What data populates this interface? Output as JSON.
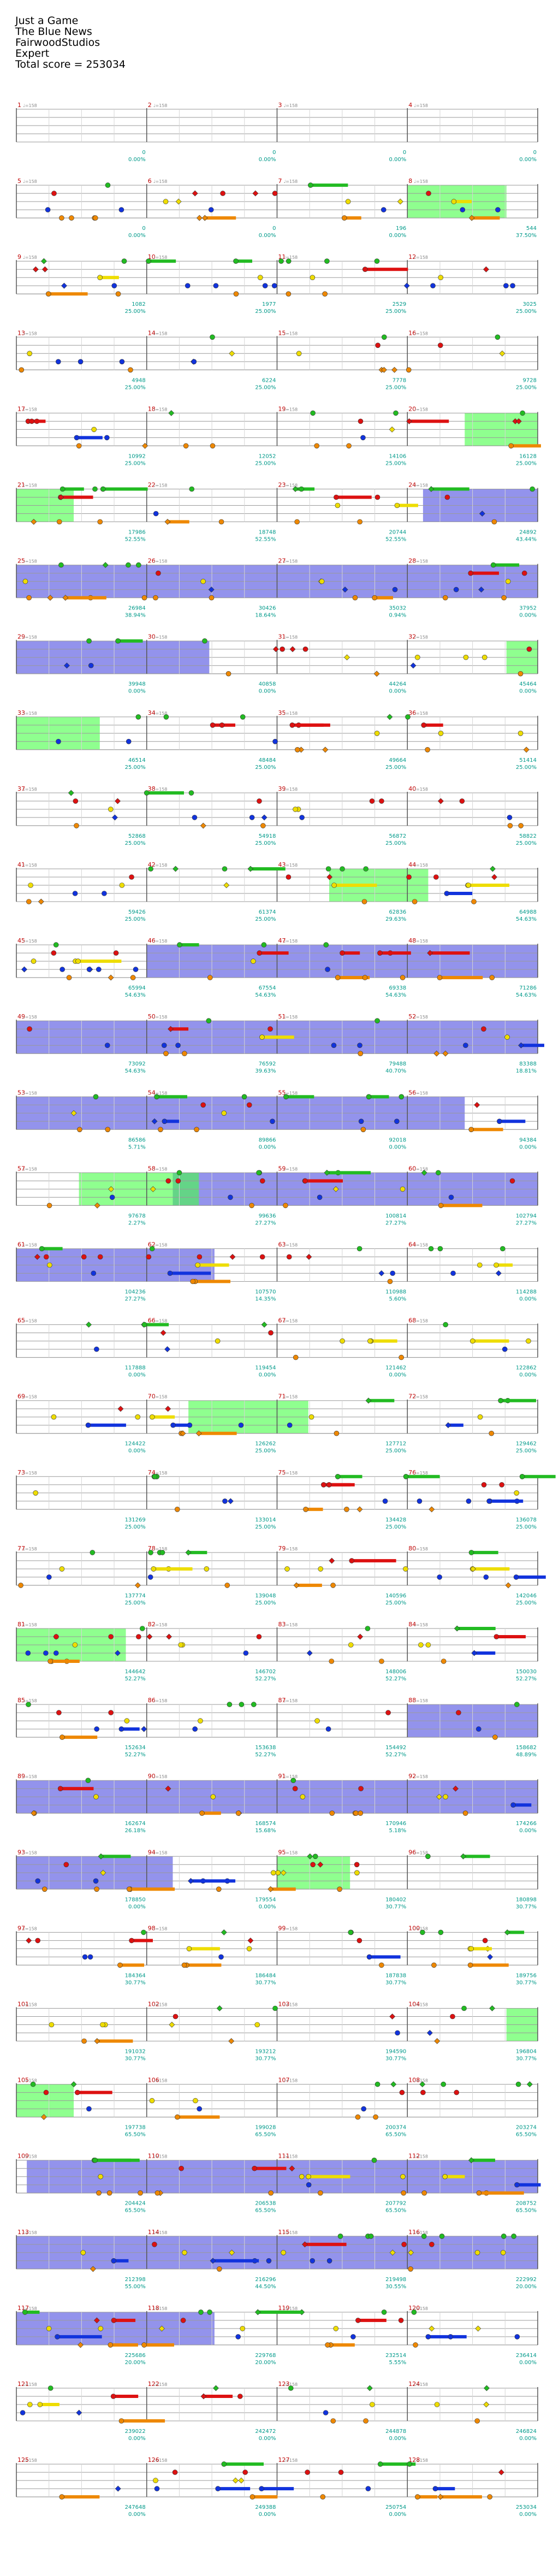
{
  "header": {
    "song_title": "Just a Game",
    "artist": "The Blue News",
    "charter": "FairwoodStudios",
    "difficulty": "Expert",
    "total_score": "Total score = 253034"
  },
  "colors": {
    "green_note": "#22bb22",
    "red_note": "#dd1111",
    "yellow_note": "#eedd00",
    "blue_note": "#1133dd",
    "orange_note": "#ee8800",
    "star_power": "#3b3bdd",
    "solo_section": "#44ff44",
    "open_note": "#aa22aa",
    "score_text": "#009a8a",
    "measure_text": "#c00000"
  },
  "rows": [
    {
      "measures": [
        "1",
        "2",
        "3",
        "4"
      ],
      "scores": [
        "0",
        "0",
        "0",
        "0"
      ],
      "multipliers": [
        "0.00%",
        "0.00%",
        "0.00%",
        "0.00%"
      ],
      "tempos": [
        "♩=158",
        "♩=158",
        "♩=158",
        "♩=158"
      ]
    },
    {
      "measures": [
        "5",
        "6",
        "7",
        "8"
      ],
      "scores": [
        "0",
        "0",
        "196",
        "544"
      ],
      "multipliers": [
        "0.00%",
        "0.00%",
        "0.00%",
        "37.50%"
      ],
      "tempos": [
        "♩=158",
        "♩=158",
        "♩=158",
        "♩=158"
      ]
    },
    {
      "measures": [
        "9",
        "10",
        "11",
        "12"
      ],
      "scores": [
        "1082",
        "1977",
        "2529",
        "3025"
      ],
      "multipliers": [
        "25.00%",
        "25.00%",
        "25.00%",
        "25.00%"
      ],
      "tempos": [
        "♩=158",
        "♩=158",
        "♩=158",
        "♩=158"
      ]
    },
    {
      "measures": [
        "13",
        "14",
        "15",
        "16"
      ],
      "scores": [
        "4948",
        "6224",
        "7778",
        "9728"
      ],
      "multipliers": [
        "25.00%",
        "25.00%",
        "25.00%",
        "25.00%"
      ],
      "tempos": [
        "♩=158",
        "♩=158",
        "♩=158",
        "♩=158"
      ]
    },
    {
      "measures": [
        "17",
        "18",
        "19",
        "20"
      ],
      "scores": [
        "10992",
        "12052",
        "14106",
        "16128"
      ],
      "multipliers": [
        "25.00%",
        "25.00%",
        "25.00%",
        "25.00%"
      ],
      "tempos": [
        "♩=158",
        "♩=158",
        "♩=158",
        "♩=158"
      ]
    },
    {
      "measures": [
        "21",
        "22",
        "23",
        "24"
      ],
      "scores": [
        "17986",
        "18748",
        "20744",
        "24892"
      ],
      "multipliers": [
        "52.55%",
        "52.55%",
        "52.55%",
        "43.44%"
      ],
      "tempos": [
        "♩=158",
        "♩=158",
        "♩=158",
        "♩=158"
      ]
    },
    {
      "measures": [
        "25",
        "26",
        "27",
        "28"
      ],
      "scores": [
        "26984",
        "30426",
        "35032",
        "37952"
      ],
      "multipliers": [
        "38.94%",
        "18.64%",
        "0.94%",
        "0.00%"
      ],
      "tempos": [
        "♩=158",
        "♩=158",
        "♩=158",
        "♩=158"
      ]
    },
    {
      "measures": [
        "29",
        "30",
        "31",
        "32"
      ],
      "scores": [
        "39948",
        "40858",
        "44264",
        "45464"
      ],
      "multipliers": [
        "0.00%",
        "0.00%",
        "0.00%",
        "0.00%"
      ],
      "tempos": [
        "♩=158",
        "♩=158",
        "♩=158",
        "♩=158"
      ]
    },
    {
      "measures": [
        "33",
        "34",
        "35",
        "36"
      ],
      "scores": [
        "46514",
        "48484",
        "49664",
        "51414"
      ],
      "multipliers": [
        "25.00%",
        "25.00%",
        "25.00%",
        "25.00%"
      ],
      "tempos": [
        "♩=158",
        "♩=158",
        "♩=158",
        "♩=158"
      ]
    },
    {
      "measures": [
        "37",
        "38",
        "39",
        "40"
      ],
      "scores": [
        "52868",
        "54918",
        "56872",
        "58822"
      ],
      "multipliers": [
        "25.00%",
        "25.00%",
        "25.00%",
        "25.00%"
      ],
      "tempos": [
        "♩=158",
        "♩=158",
        "♩=158",
        "♩=158"
      ]
    },
    {
      "measures": [
        "41",
        "42",
        "43",
        "44"
      ],
      "scores": [
        "59426",
        "61374",
        "62836",
        "64988"
      ],
      "multipliers": [
        "25.00%",
        "25.00%",
        "29.63%",
        "54.63%"
      ],
      "tempos": [
        "♩=158",
        "♩=158",
        "♩=158",
        "♩=158"
      ]
    },
    {
      "measures": [
        "45",
        "46",
        "47",
        "48"
      ],
      "scores": [
        "65994",
        "67554",
        "69338",
        "71286"
      ],
      "multipliers": [
        "54.63%",
        "54.63%",
        "54.63%",
        "54.63%"
      ],
      "tempos": [
        "♩=158",
        "♩=158",
        "♩=158",
        "♩=158"
      ]
    },
    {
      "measures": [
        "49",
        "50",
        "51",
        "52"
      ],
      "scores": [
        "73092",
        "76592",
        "79488",
        "83388"
      ],
      "multipliers": [
        "54.63%",
        "39.63%",
        "40.70%",
        "18.81%"
      ],
      "tempos": [
        "♩=158",
        "♩=158",
        "♩=158",
        "♩=158"
      ]
    },
    {
      "measures": [
        "53",
        "54",
        "55",
        "56"
      ],
      "scores": [
        "86586",
        "89866",
        "92018",
        "94384"
      ],
      "multipliers": [
        "5.71%",
        "0.00%",
        "0.00%",
        "0.00%"
      ],
      "tempos": [
        "♩=158",
        "♩=158",
        "♩=158",
        "♩=158"
      ]
    },
    {
      "measures": [
        "57",
        "58",
        "59",
        "60"
      ],
      "scores": [
        "97678",
        "99636",
        "100814",
        "102794"
      ],
      "multipliers": [
        "2.27%",
        "27.27%",
        "27.27%",
        "27.27%"
      ],
      "tempos": [
        "♩=158",
        "♩=158",
        "♩=158",
        "♩=158"
      ]
    },
    {
      "measures": [
        "61",
        "62",
        "63",
        "64"
      ],
      "scores": [
        "104236",
        "107570",
        "110988",
        "114288"
      ],
      "multipliers": [
        "27.27%",
        "14.35%",
        "5.60%",
        "0.00%"
      ],
      "tempos": [
        "♩=158",
        "♩=158",
        "♩=158",
        "♩=158"
      ]
    },
    {
      "measures": [
        "65",
        "66",
        "67",
        "68"
      ],
      "scores": [
        "117888",
        "119454",
        "121462",
        "122862"
      ],
      "multipliers": [
        "0.00%",
        "0.00%",
        "0.00%",
        "0.00%"
      ],
      "tempos": [
        "♩=158",
        "♩=158",
        "♩=158",
        "♩=158"
      ]
    },
    {
      "measures": [
        "69",
        "70",
        "71",
        "72"
      ],
      "scores": [
        "124422",
        "126262",
        "127712",
        "129462"
      ],
      "multipliers": [
        "0.00%",
        "25.00%",
        "25.00%",
        "25.00%"
      ],
      "tempos": [
        "♩=158",
        "♩=158",
        "♩=158",
        "♩=158"
      ]
    },
    {
      "measures": [
        "73",
        "74",
        "75",
        "76"
      ],
      "scores": [
        "131269",
        "133014",
        "134428",
        "136078"
      ],
      "multipliers": [
        "25.00%",
        "25.00%",
        "25.00%",
        "25.00%"
      ],
      "tempos": [
        "♩=158",
        "♩=158",
        "♩=158",
        "♩=158"
      ]
    },
    {
      "measures": [
        "77",
        "78",
        "79",
        "80"
      ],
      "scores": [
        "137774",
        "139048",
        "140596",
        "142046"
      ],
      "multipliers": [
        "25.00%",
        "25.00%",
        "25.00%",
        "25.00%"
      ],
      "tempos": [
        "♩=158",
        "♩=158",
        "♩=158",
        "♩=158"
      ]
    },
    {
      "measures": [
        "81",
        "82",
        "83",
        "84"
      ],
      "scores": [
        "144642",
        "146702",
        "148006",
        "150030"
      ],
      "multipliers": [
        "52.27%",
        "52.27%",
        "52.27%",
        "52.27%"
      ],
      "tempos": [
        "♩=158",
        "♩=158",
        "♩=158",
        "♩=158"
      ]
    },
    {
      "measures": [
        "85",
        "86",
        "87",
        "88"
      ],
      "scores": [
        "152634",
        "153638",
        "154492",
        "158682"
      ],
      "multipliers": [
        "52.27%",
        "52.27%",
        "52.27%",
        "48.89%"
      ],
      "tempos": [
        "♩=158",
        "♩=158",
        "♩=158",
        "♩=158"
      ]
    },
    {
      "measures": [
        "89",
        "90",
        "91",
        "92"
      ],
      "scores": [
        "162674",
        "168574",
        "170946",
        "174266"
      ],
      "multipliers": [
        "26.18%",
        "15.68%",
        "5.18%",
        "0.00%"
      ],
      "tempos": [
        "♩=158",
        "♩=158",
        "♩=158",
        "♩=158"
      ]
    },
    {
      "measures": [
        "93",
        "94",
        "95",
        "96"
      ],
      "scores": [
        "178850",
        "179554",
        "180402",
        "180898"
      ],
      "multipliers": [
        "0.00%",
        "0.00%",
        "30.77%",
        "30.77%"
      ],
      "tempos": [
        "♩=158",
        "♩=158",
        "♩=158",
        "♩=158"
      ]
    },
    {
      "measures": [
        "97",
        "98",
        "99",
        "100"
      ],
      "scores": [
        "184364",
        "186484",
        "187838",
        "189756"
      ],
      "multipliers": [
        "30.77%",
        "30.77%",
        "30.77%",
        "30.77%"
      ],
      "tempos": [
        "♩=158",
        "♩=158",
        "♩=158",
        "♩=158"
      ]
    },
    {
      "measures": [
        "101",
        "102",
        "103",
        "104"
      ],
      "scores": [
        "191032",
        "193212",
        "194590",
        "196804"
      ],
      "multipliers": [
        "30.77%",
        "30.77%",
        "30.77%",
        "30.77%"
      ],
      "tempos": [
        "♩=158",
        "♩=158",
        "♩=158",
        "♩=158"
      ]
    },
    {
      "measures": [
        "105",
        "106",
        "107",
        "108"
      ],
      "scores": [
        "197738",
        "199028",
        "200374",
        "203274"
      ],
      "multipliers": [
        "65.50%",
        "65.50%",
        "65.50%",
        "65.50%"
      ],
      "tempos": [
        "♩=158",
        "♩=158",
        "♩=158",
        "♩=158"
      ]
    },
    {
      "measures": [
        "109",
        "110",
        "111",
        "112"
      ],
      "scores": [
        "204424",
        "206538",
        "207792",
        "208752"
      ],
      "multipliers": [
        "65.50%",
        "65.50%",
        "65.50%",
        "65.50%"
      ],
      "tempos": [
        "♩=158",
        "♩=158",
        "♩=158",
        "♩=158"
      ]
    },
    {
      "measures": [
        "113",
        "114",
        "115",
        "116"
      ],
      "scores": [
        "212398",
        "216296",
        "219498",
        "222992"
      ],
      "multipliers": [
        "55.00%",
        "44.50%",
        "30.55%",
        "20.00%"
      ],
      "tempos": [
        "♩=158",
        "♩=158",
        "♩=158",
        "♩=158"
      ]
    },
    {
      "measures": [
        "117",
        "118",
        "119",
        "120"
      ],
      "scores": [
        "225686",
        "229768",
        "232514",
        "236414"
      ],
      "multipliers": [
        "20.00%",
        "20.00%",
        "5.55%",
        "0.00%"
      ],
      "tempos": [
        "♩=158",
        "♩=158",
        "♩=158",
        "♩=158"
      ]
    },
    {
      "measures": [
        "121",
        "122",
        "123",
        "124"
      ],
      "scores": [
        "239022",
        "242472",
        "244878",
        "246824"
      ],
      "multipliers": [
        "0.00%",
        "0.00%",
        "0.00%",
        "0.00%"
      ],
      "tempos": [
        "♩=158",
        "♩=158",
        "♩=158",
        "♩=158"
      ]
    },
    {
      "measures": [
        "125",
        "126",
        "127",
        "128"
      ],
      "scores": [
        "247648",
        "249388",
        "250754",
        "253034"
      ],
      "multipliers": [
        "0.00%",
        "0.00%",
        "0.00%",
        "0.00%"
      ],
      "tempos": [
        "♩=158",
        "♩=158",
        "♩=158",
        "♩=158"
      ]
    }
  ]
}
